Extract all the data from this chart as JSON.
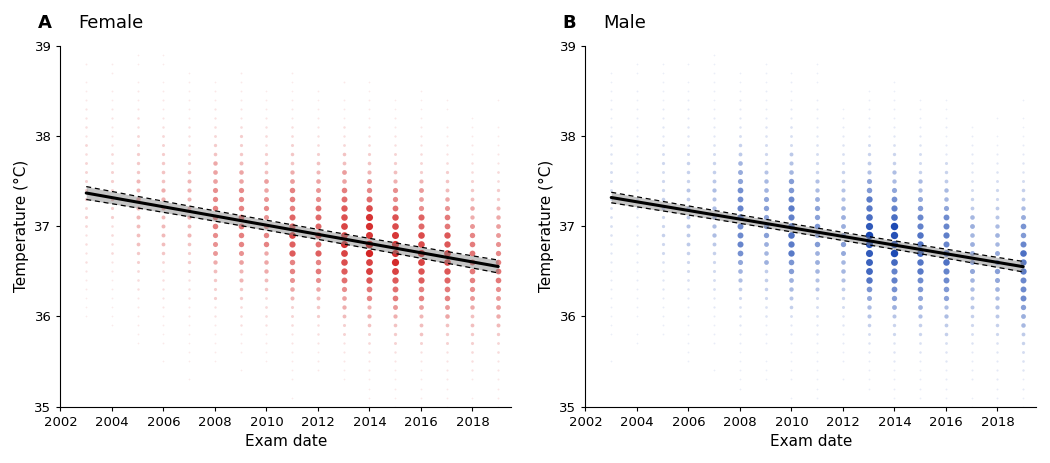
{
  "panel_A": {
    "label": "A",
    "title": "Female",
    "dot_color": "#CC0000",
    "trend_intercept": 37.37,
    "trend_slope": -0.051,
    "trend_x0": 2003,
    "ci_halfwidth": 0.055
  },
  "panel_B": {
    "label": "B",
    "title": "Male",
    "dot_color": "#0033AA",
    "trend_intercept": 37.32,
    "trend_slope": -0.048,
    "trend_x0": 2003,
    "ci_halfwidth": 0.045
  },
  "x_min": 2002,
  "x_max": 2019.5,
  "y_min": 35,
  "y_max": 39,
  "x_ticks": [
    2002,
    2004,
    2006,
    2008,
    2010,
    2012,
    2014,
    2016,
    2018
  ],
  "y_ticks": [
    35,
    36,
    37,
    38,
    39
  ],
  "xlabel": "Exam date",
  "ylabel": "Temperature (°C)",
  "background_color": "#ffffff"
}
